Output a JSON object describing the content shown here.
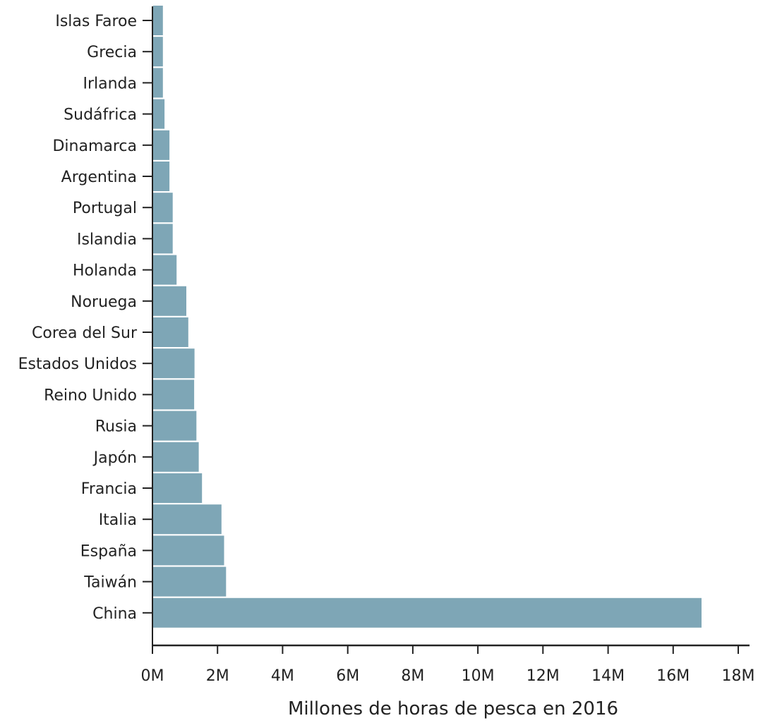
{
  "chart_data": {
    "type": "bar",
    "orientation": "horizontal",
    "title": "",
    "xlabel": "Millones de horas de pesca en 2016",
    "ylabel": "",
    "xlim": [
      0,
      18
    ],
    "grid": false,
    "legend": "none",
    "tick_labels": [
      "0M",
      "2M",
      "4M",
      "6M",
      "8M",
      "10M",
      "12M",
      "14M",
      "16M",
      "18M"
    ],
    "tick_values": [
      0,
      2,
      4,
      6,
      8,
      10,
      12,
      14,
      16,
      18
    ],
    "categories": [
      "Islas Faroe",
      "Grecia",
      "Irlanda",
      "Sudáfrica",
      "Dinamarca",
      "Argentina",
      "Portugal",
      "Islandia",
      "Holanda",
      "Noruega",
      "Corea del Sur",
      "Estados Unidos",
      "Reino Unido",
      "Rusia",
      "Japón",
      "Francia",
      "Italia",
      "España",
      "Taiwán",
      "China"
    ],
    "values": [
      0.3,
      0.3,
      0.3,
      0.35,
      0.5,
      0.5,
      0.6,
      0.6,
      0.72,
      1.02,
      1.08,
      1.27,
      1.26,
      1.33,
      1.4,
      1.5,
      2.1,
      2.18,
      2.24,
      16.85
    ],
    "colors": {
      "bar": "#7ea6b6",
      "axis": "#222222"
    }
  }
}
